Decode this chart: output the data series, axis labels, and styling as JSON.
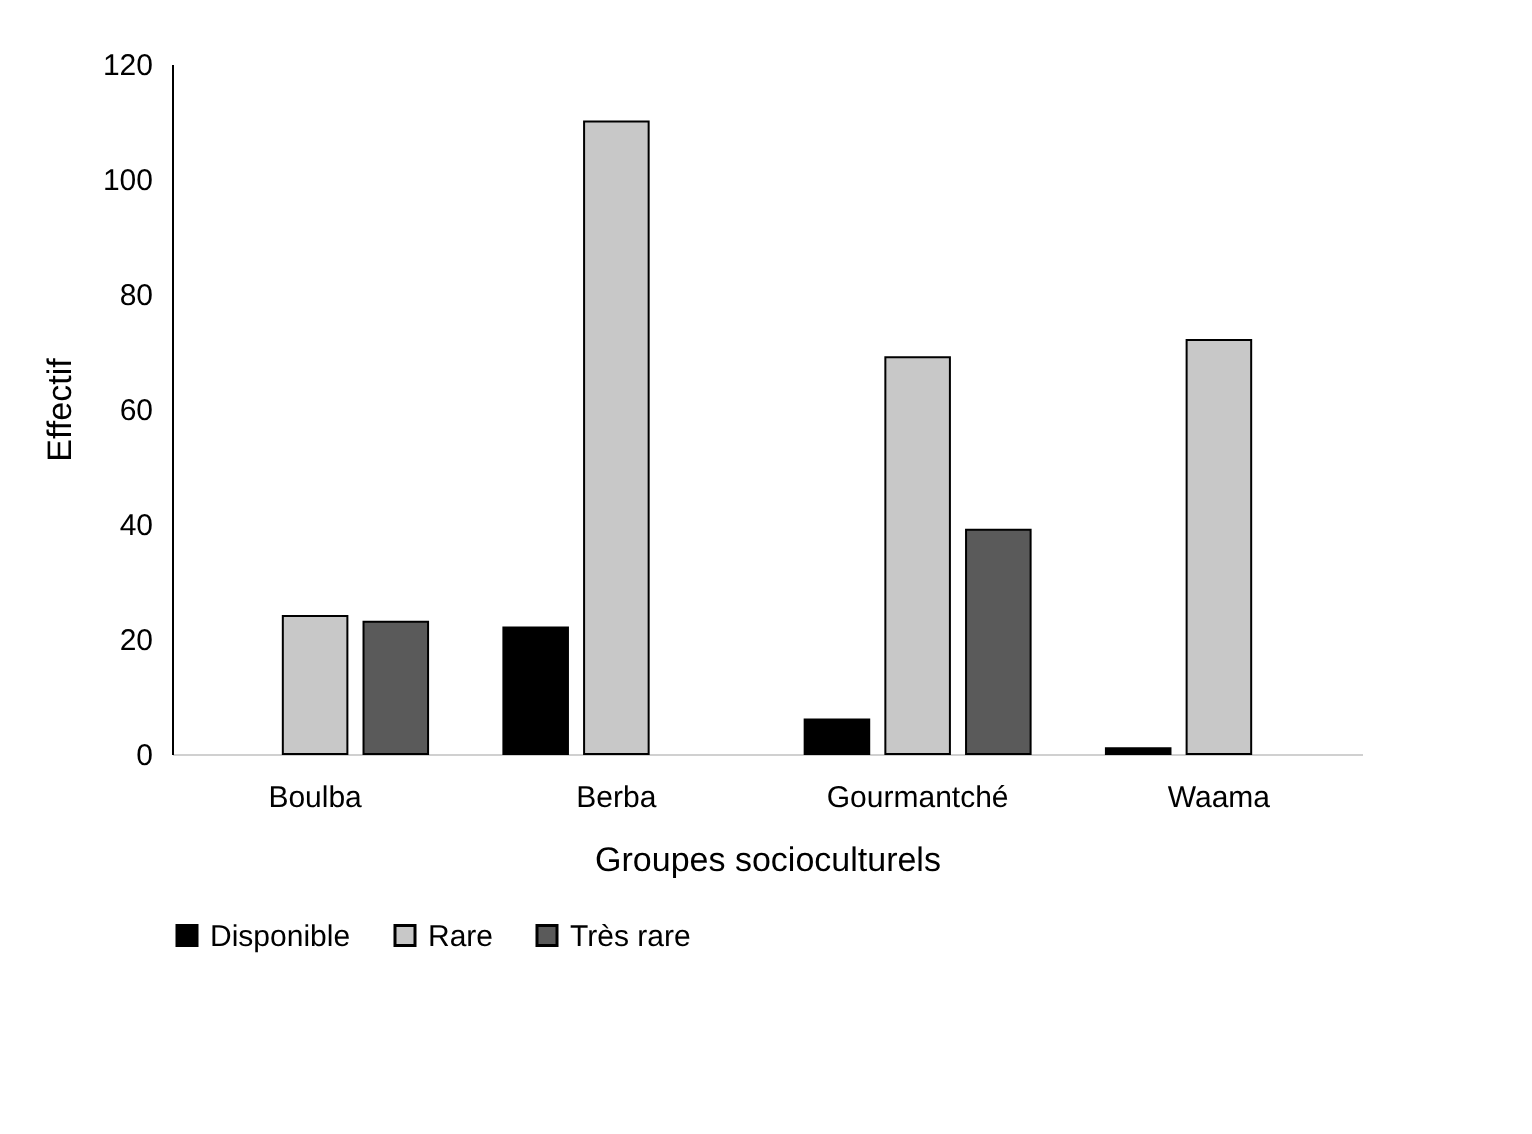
{
  "chart_data": {
    "type": "bar",
    "xlabel": "Groupes socioculturels",
    "ylabel": "Effectif",
    "categories": [
      "Boulba",
      "Berba",
      "Gourmantché",
      "Waama"
    ],
    "series": [
      {
        "name": "Disponible",
        "color": "#000000",
        "values": [
          null,
          22,
          6,
          1
        ]
      },
      {
        "name": "Rare",
        "color": "#c8c8c8",
        "values": [
          24,
          110,
          69,
          72
        ]
      },
      {
        "name": "Très rare",
        "color": "#5a5a5a",
        "values": [
          23,
          null,
          39,
          null
        ]
      }
    ],
    "ylim": [
      0,
      120
    ],
    "yticks": [
      0,
      20,
      40,
      60,
      80,
      100,
      120
    ],
    "grid": false,
    "legend": "bottom"
  }
}
